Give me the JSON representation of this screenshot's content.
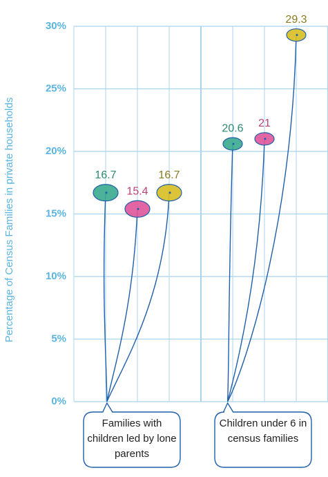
{
  "chart_data": {
    "type": "balloon",
    "y_label": "Percentage of Census Families in private households",
    "categories": [
      "Families with children led by lone parents",
      "Children under 6 in census families"
    ],
    "series": [
      {
        "color": "#3aaa8f",
        "label_color": "#2a8a70",
        "values": [
          16.7,
          20.6
        ]
      },
      {
        "color": "#e0559a",
        "label_color": "#c0407a",
        "values": [
          15.4,
          21.0
        ]
      },
      {
        "color": "#d8be22",
        "label_color": "#8a7a20",
        "values": [
          16.7,
          29.3
        ]
      }
    ],
    "ylim": [
      0,
      30
    ],
    "yticks": [
      {
        "value": 0,
        "label": "0%"
      },
      {
        "value": 5,
        "label": "5%"
      },
      {
        "value": 10,
        "label": "10%"
      },
      {
        "value": 15,
        "label": "15%"
      },
      {
        "value": 20,
        "label": "20%"
      },
      {
        "value": 25,
        "label": "25%"
      },
      {
        "value": 30,
        "label": "30%"
      }
    ],
    "grid": true
  }
}
